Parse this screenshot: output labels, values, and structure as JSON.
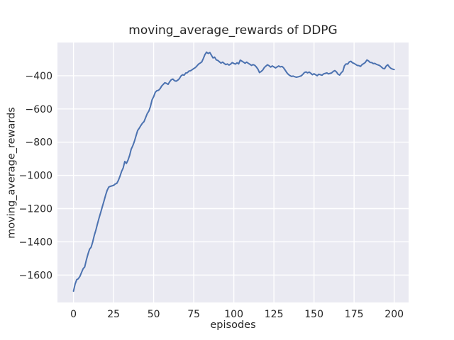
{
  "figure": {
    "background": "#ffffff"
  },
  "chart_data": {
    "type": "line",
    "title": "moving_average_rewards of DDPG",
    "xlabel": "episodes",
    "ylabel": "moving_average_rewards",
    "style": "seaborn-darkgrid",
    "grid": true,
    "legend": "none",
    "xlim": [
      -10,
      209
    ],
    "ylim": [
      -1765,
      -200
    ],
    "x_ticks": [
      0,
      25,
      50,
      75,
      100,
      125,
      150,
      175,
      200
    ],
    "x_tick_labels": [
      "0",
      "25",
      "50",
      "75",
      "100",
      "125",
      "150",
      "175",
      "200"
    ],
    "y_ticks": [
      -400,
      -600,
      -800,
      -1000,
      -1200,
      -1400,
      -1600
    ],
    "y_tick_labels": [
      "−400",
      "−600",
      "−800",
      "−1000",
      "−1200",
      "−1400",
      "−1600"
    ],
    "colors": {
      "line": "#4c72b0",
      "plot_background": "#eaeaf2",
      "grid": "#ffffff",
      "text": "#262626"
    },
    "series": [
      {
        "name": "moving_average_rewards",
        "x_start": 0,
        "x_step": 1,
        "values": [
          -1697,
          -1655,
          -1628,
          -1622,
          -1608,
          -1585,
          -1562,
          -1551,
          -1510,
          -1475,
          -1445,
          -1432,
          -1400,
          -1360,
          -1328,
          -1290,
          -1255,
          -1222,
          -1188,
          -1155,
          -1120,
          -1090,
          -1070,
          -1066,
          -1063,
          -1060,
          -1052,
          -1048,
          -1030,
          -1005,
          -976,
          -955,
          -916,
          -928,
          -908,
          -880,
          -842,
          -821,
          -795,
          -762,
          -730,
          -716,
          -700,
          -686,
          -676,
          -652,
          -628,
          -613,
          -585,
          -545,
          -526,
          -500,
          -490,
          -488,
          -478,
          -462,
          -452,
          -442,
          -446,
          -452,
          -436,
          -424,
          -420,
          -430,
          -433,
          -427,
          -418,
          -402,
          -394,
          -397,
          -384,
          -382,
          -372,
          -370,
          -364,
          -357,
          -351,
          -341,
          -330,
          -324,
          -317,
          -296,
          -272,
          -258,
          -266,
          -260,
          -276,
          -293,
          -288,
          -304,
          -308,
          -316,
          -324,
          -318,
          -326,
          -333,
          -329,
          -336,
          -330,
          -321,
          -326,
          -330,
          -322,
          -329,
          -306,
          -312,
          -318,
          -325,
          -318,
          -325,
          -331,
          -338,
          -333,
          -337,
          -347,
          -360,
          -381,
          -375,
          -366,
          -351,
          -342,
          -334,
          -340,
          -348,
          -341,
          -347,
          -353,
          -347,
          -341,
          -347,
          -344,
          -352,
          -366,
          -381,
          -392,
          -399,
          -404,
          -402,
          -406,
          -409,
          -407,
          -404,
          -401,
          -392,
          -381,
          -377,
          -383,
          -378,
          -385,
          -394,
          -388,
          -394,
          -400,
          -391,
          -394,
          -397,
          -389,
          -386,
          -383,
          -389,
          -386,
          -383,
          -374,
          -369,
          -377,
          -391,
          -396,
          -382,
          -373,
          -340,
          -329,
          -330,
          -317,
          -313,
          -322,
          -326,
          -332,
          -338,
          -339,
          -344,
          -333,
          -327,
          -320,
          -305,
          -311,
          -320,
          -321,
          -327,
          -326,
          -332,
          -335,
          -339,
          -347,
          -356,
          -358,
          -342,
          -334,
          -347,
          -356,
          -360,
          -363
        ]
      }
    ]
  }
}
